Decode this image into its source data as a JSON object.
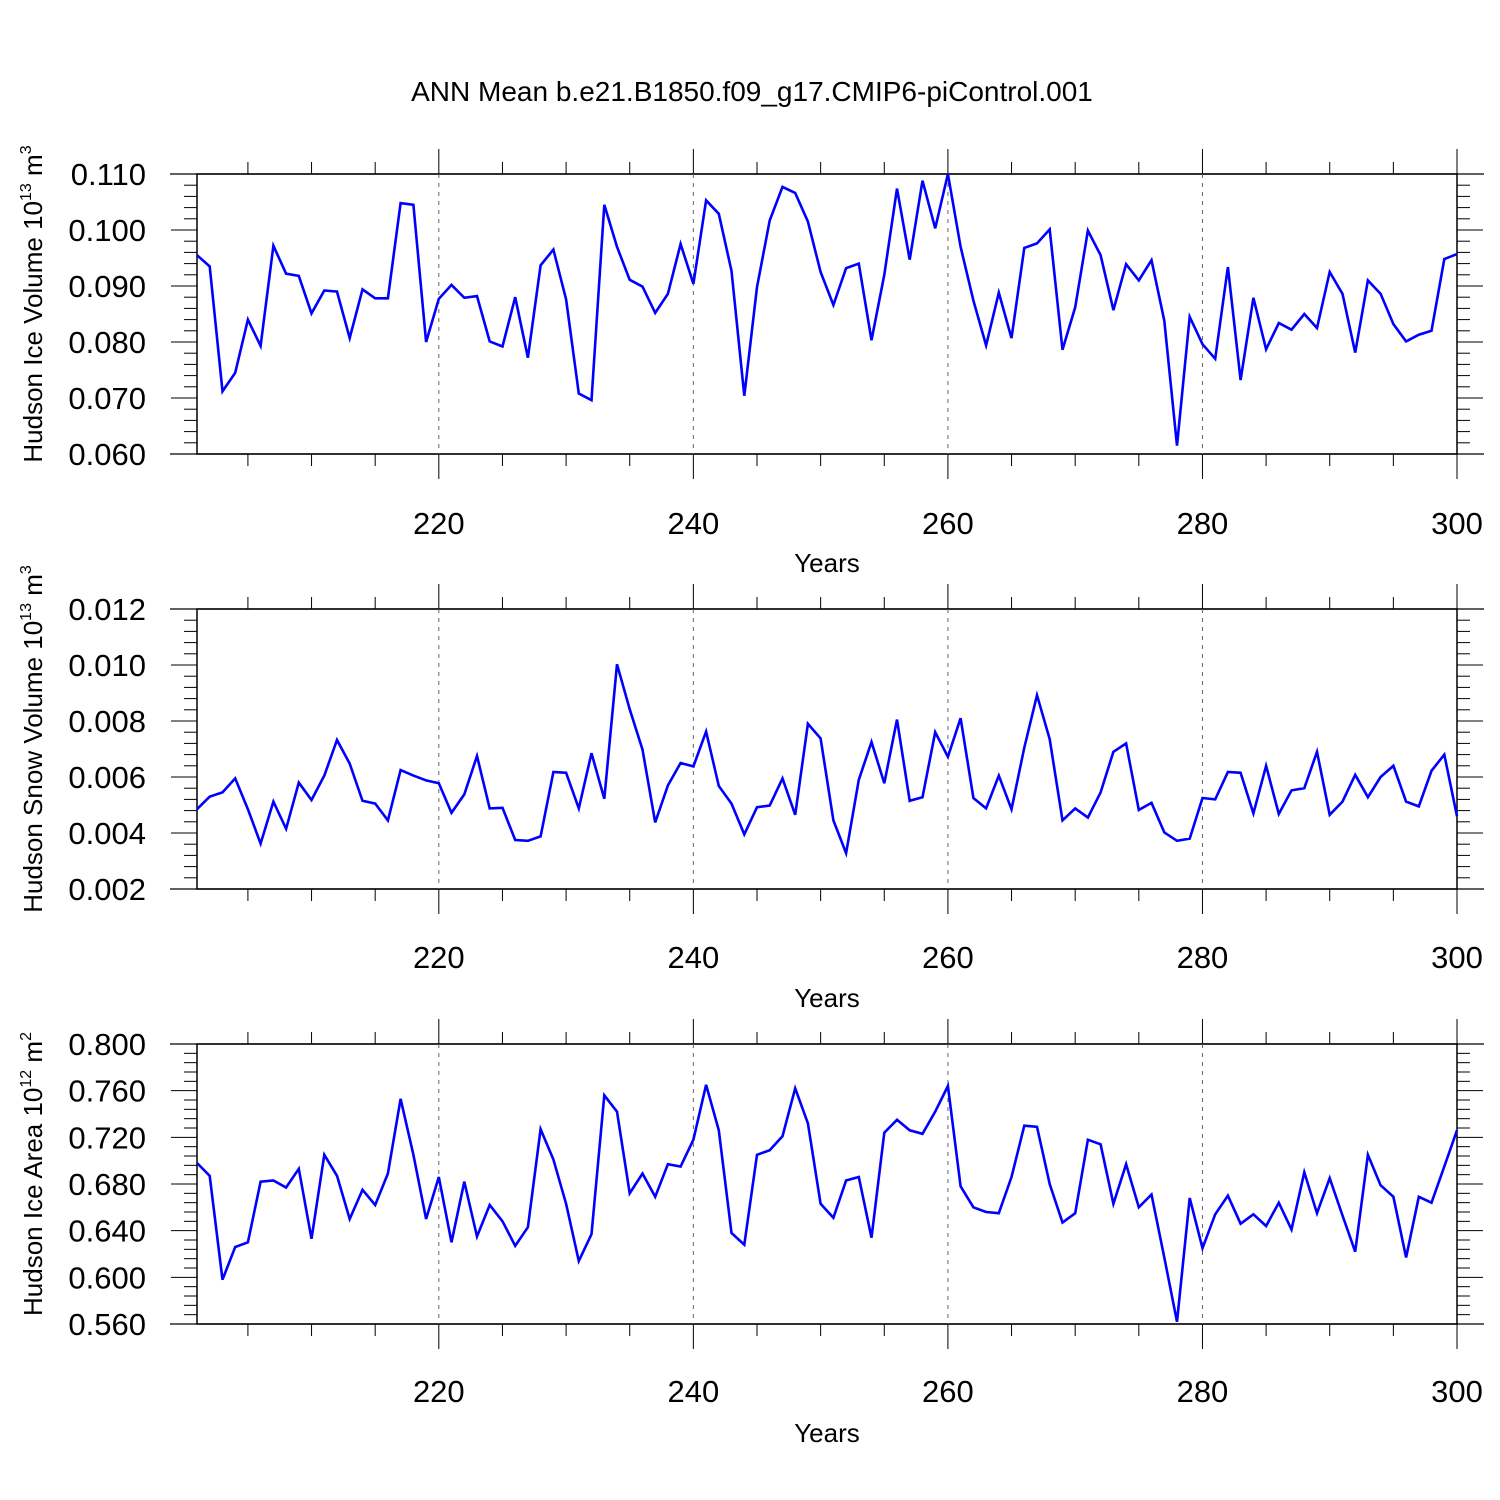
{
  "chart_title": "ANN Mean b.e21.B1850.f09_g17.CMIP6-piControl.001",
  "chart_data": [
    {
      "type": "line",
      "title": "ANN Mean b.e21.B1850.f09_g17.CMIP6-piControl.001",
      "xlabel": "Years",
      "ylabel_main": "Hudson Ice Volume 10",
      "ylabel_exp": "13",
      "ylabel_unit": " m",
      "ylabel_unit_exp": "3",
      "xlim": [
        201,
        300
      ],
      "ylim": [
        0.06,
        0.11
      ],
      "xticks": [
        220,
        240,
        260,
        280,
        300
      ],
      "yticks": [
        0.06,
        0.07,
        0.08,
        0.09,
        0.1,
        0.11
      ],
      "ytick_labels": [
        "0.060",
        "0.070",
        "0.080",
        "0.090",
        "0.100",
        "0.110"
      ],
      "line_color": "#0000ff",
      "x_start": 201,
      "values": [
        0.0955,
        0.0935,
        0.0712,
        0.0745,
        0.084,
        0.0793,
        0.0972,
        0.0922,
        0.0918,
        0.0851,
        0.0892,
        0.089,
        0.0807,
        0.0894,
        0.0878,
        0.0878,
        0.1048,
        0.1045,
        0.08,
        0.0877,
        0.0902,
        0.0879,
        0.0882,
        0.0801,
        0.0792,
        0.088,
        0.0772,
        0.0937,
        0.0965,
        0.0876,
        0.0708,
        0.0696,
        0.1045,
        0.097,
        0.0911,
        0.0899,
        0.0852,
        0.0886,
        0.0975,
        0.0904,
        0.1053,
        0.1029,
        0.0927,
        0.0704,
        0.0898,
        0.1017,
        0.1077,
        0.1066,
        0.1015,
        0.0925,
        0.0866,
        0.0932,
        0.094,
        0.0803,
        0.092,
        0.1074,
        0.0947,
        0.1088,
        0.1003,
        0.11,
        0.097,
        0.0874,
        0.0794,
        0.0888,
        0.0807,
        0.0968,
        0.0976,
        0.1001,
        0.0786,
        0.0862,
        0.0999,
        0.0955,
        0.0857,
        0.0939,
        0.091,
        0.0946,
        0.0838,
        0.0615,
        0.0845,
        0.0796,
        0.077,
        0.0934,
        0.0732,
        0.0879,
        0.0787,
        0.0834,
        0.0822,
        0.085,
        0.0825,
        0.0925,
        0.0886,
        0.0781,
        0.091,
        0.0886,
        0.0832,
        0.0801,
        0.0813,
        0.082,
        0.0948,
        0.0957
      ]
    },
    {
      "type": "line",
      "xlabel": "Years",
      "ylabel_main": "Hudson Snow Volume 10",
      "ylabel_exp": "13",
      "ylabel_unit": " m",
      "ylabel_unit_exp": "3",
      "xlim": [
        201,
        300
      ],
      "ylim": [
        0.002,
        0.012
      ],
      "xticks": [
        220,
        240,
        260,
        280,
        300
      ],
      "yticks": [
        0.002,
        0.004,
        0.006,
        0.008,
        0.01,
        0.012
      ],
      "ytick_labels": [
        "0.002",
        "0.004",
        "0.006",
        "0.008",
        "0.010",
        "0.012"
      ],
      "line_color": "#0000ff",
      "x_start": 201,
      "values": [
        0.00485,
        0.0053,
        0.00545,
        0.00595,
        0.00485,
        0.00362,
        0.00512,
        0.00415,
        0.0058,
        0.00518,
        0.00605,
        0.00732,
        0.00648,
        0.00515,
        0.00505,
        0.00445,
        0.00625,
        0.00605,
        0.00588,
        0.00578,
        0.00472,
        0.00538,
        0.00675,
        0.00488,
        0.0049,
        0.00375,
        0.00372,
        0.00388,
        0.00618,
        0.00615,
        0.00488,
        0.00685,
        0.00522,
        0.01003,
        0.00842,
        0.00698,
        0.00438,
        0.0057,
        0.0065,
        0.00638,
        0.00762,
        0.00568,
        0.00505,
        0.00395,
        0.00492,
        0.00498,
        0.00595,
        0.00465,
        0.0079,
        0.00738,
        0.00445,
        0.00328,
        0.0059,
        0.00725,
        0.00578,
        0.00805,
        0.00515,
        0.00528,
        0.0076,
        0.00672,
        0.0081,
        0.00525,
        0.00488,
        0.00605,
        0.00485,
        0.00705,
        0.00892,
        0.00735,
        0.00445,
        0.00488,
        0.00455,
        0.00545,
        0.0069,
        0.0072,
        0.00482,
        0.00508,
        0.00402,
        0.00372,
        0.0038,
        0.00525,
        0.0052,
        0.00618,
        0.00615,
        0.0047,
        0.0064,
        0.00468,
        0.00552,
        0.0056,
        0.0069,
        0.00465,
        0.00512,
        0.00608,
        0.00528,
        0.006,
        0.0064,
        0.00512,
        0.00495,
        0.00622,
        0.0068,
        0.0046
      ]
    },
    {
      "type": "line",
      "xlabel": "Years",
      "ylabel_main": "Hudson Ice Area 10",
      "ylabel_exp": "12",
      "ylabel_unit": " m",
      "ylabel_unit_exp": "2",
      "xlim": [
        201,
        300
      ],
      "ylim": [
        0.56,
        0.8
      ],
      "xticks": [
        220,
        240,
        260,
        280,
        300
      ],
      "yticks": [
        0.56,
        0.6,
        0.64,
        0.68,
        0.72,
        0.76,
        0.8
      ],
      "ytick_labels": [
        "0.560",
        "0.600",
        "0.640",
        "0.680",
        "0.720",
        "0.760",
        "0.800"
      ],
      "line_color": "#0000ff",
      "x_start": 201,
      "values": [
        0.698,
        0.687,
        0.598,
        0.626,
        0.63,
        0.682,
        0.683,
        0.677,
        0.693,
        0.633,
        0.705,
        0.687,
        0.65,
        0.675,
        0.662,
        0.689,
        0.753,
        0.705,
        0.65,
        0.686,
        0.63,
        0.682,
        0.635,
        0.662,
        0.648,
        0.627,
        0.643,
        0.727,
        0.701,
        0.663,
        0.614,
        0.637,
        0.756,
        0.742,
        0.672,
        0.689,
        0.669,
        0.697,
        0.695,
        0.718,
        0.765,
        0.726,
        0.638,
        0.628,
        0.705,
        0.709,
        0.721,
        0.762,
        0.732,
        0.663,
        0.651,
        0.683,
        0.686,
        0.634,
        0.724,
        0.735,
        0.726,
        0.723,
        0.742,
        0.764,
        0.678,
        0.66,
        0.656,
        0.655,
        0.686,
        0.73,
        0.729,
        0.68,
        0.647,
        0.655,
        0.718,
        0.714,
        0.663,
        0.697,
        0.66,
        0.671,
        0.617,
        0.562,
        0.668,
        0.625,
        0.654,
        0.67,
        0.646,
        0.654,
        0.644,
        0.664,
        0.641,
        0.69,
        0.655,
        0.685,
        0.653,
        0.622,
        0.705,
        0.679,
        0.669,
        0.617,
        0.669,
        0.664,
        0.695,
        0.726
      ]
    }
  ]
}
